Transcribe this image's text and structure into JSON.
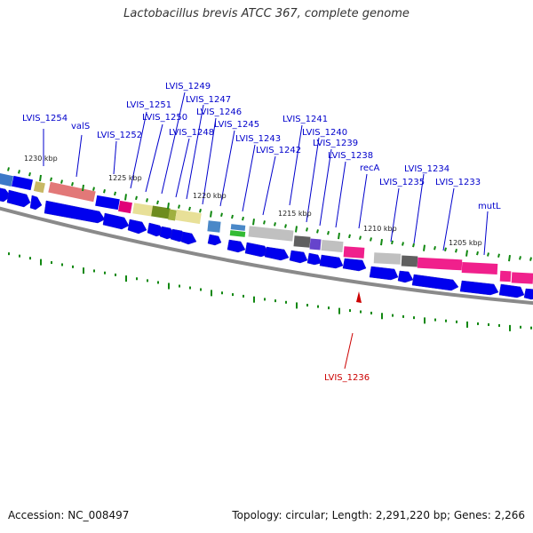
{
  "title": "Lactobacillus brevis ATCC 367, complete genome",
  "footer": {
    "accession": "Accession: NC_008497",
    "topology": "Topology: circular; Length: 2,291,220 bp; Genes: 2,266"
  },
  "scale_labels": [
    "1230 kbp",
    "1225 kbp",
    "1220 kbp",
    "1215 kbp",
    "1210 kbp",
    "1205 kbp"
  ],
  "gene_labels": [
    {
      "text": "LVIS_1254",
      "color": "#0000cc"
    },
    {
      "text": "valS",
      "color": "#0000cc"
    },
    {
      "text": "LVIS_1252",
      "color": "#0000cc"
    },
    {
      "text": "LVIS_1251",
      "color": "#0000cc"
    },
    {
      "text": "LVIS_1250",
      "color": "#0000cc"
    },
    {
      "text": "LVIS_1249",
      "color": "#0000cc"
    },
    {
      "text": "LVIS_1248",
      "color": "#0000cc"
    },
    {
      "text": "LVIS_1247",
      "color": "#0000cc"
    },
    {
      "text": "LVIS_1246",
      "color": "#0000cc"
    },
    {
      "text": "LVIS_1245",
      "color": "#0000cc"
    },
    {
      "text": "LVIS_1243",
      "color": "#0000cc"
    },
    {
      "text": "LVIS_1242",
      "color": "#0000cc"
    },
    {
      "text": "LVIS_1241",
      "color": "#0000cc"
    },
    {
      "text": "LVIS_1240",
      "color": "#0000cc"
    },
    {
      "text": "LVIS_1239",
      "color": "#0000cc"
    },
    {
      "text": "LVIS_1238",
      "color": "#0000cc"
    },
    {
      "text": "recA",
      "color": "#0000cc"
    },
    {
      "text": "LVIS_1235",
      "color": "#0000cc"
    },
    {
      "text": "LVIS_1234",
      "color": "#0000cc"
    },
    {
      "text": "LVIS_1233",
      "color": "#0000cc"
    },
    {
      "text": "mutL",
      "color": "#0000cc"
    },
    {
      "text": "LVIS_1236",
      "color": "#cc0000"
    }
  ],
  "colors": {
    "gene_arrow": "#0000ee",
    "backbone": "#888888",
    "tick_green": "#118811",
    "label_blue": "#0000cc",
    "label_red": "#cc0000"
  }
}
